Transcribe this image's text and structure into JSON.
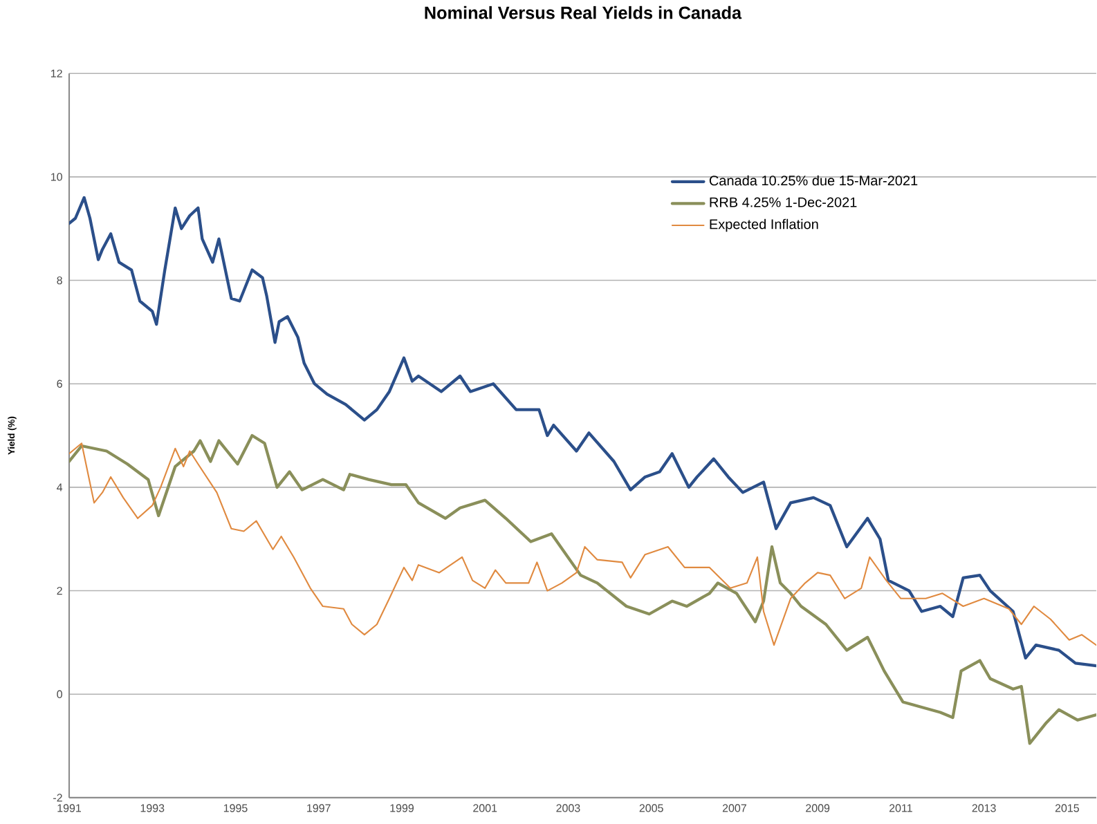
{
  "chart_data": {
    "type": "line",
    "title": "Nominal Versus Real Yields in Canada",
    "ylabel": "Yield (%)",
    "xlim": [
      1991,
      2015.7
    ],
    "xticks": [
      1991,
      1993,
      1995,
      1997,
      1999,
      2001,
      2003,
      2005,
      2007,
      2009,
      2011,
      2013,
      2015
    ],
    "ylim": [
      -2,
      12
    ],
    "yticks": [
      -2,
      0,
      2,
      4,
      6,
      8,
      10,
      12
    ],
    "grid": "y",
    "legend": "top right",
    "marker": "none",
    "line_style": "solid",
    "series": [
      {
        "name": "Canada 10.25% due 15-Mar-2021",
        "color": "#2b4f8a",
        "x": [
          1991.0,
          1991.15,
          1991.36,
          1991.5,
          1991.7,
          1991.8,
          1992.0,
          1992.2,
          1992.5,
          1992.7,
          1993.0,
          1993.1,
          1993.3,
          1993.55,
          1993.7,
          1993.9,
          1994.1,
          1994.2,
          1994.45,
          1994.6,
          1994.9,
          1995.1,
          1995.4,
          1995.65,
          1995.75,
          1995.95,
          1996.05,
          1996.25,
          1996.5,
          1996.65,
          1996.9,
          1997.2,
          1997.65,
          1998.1,
          1998.4,
          1998.7,
          1999.05,
          1999.25,
          1999.4,
          1999.95,
          2000.4,
          2000.65,
          2001.2,
          2001.75,
          2002.3,
          2002.5,
          2002.65,
          2003.2,
          2003.5,
          2004.1,
          2004.5,
          2004.85,
          2005.2,
          2005.5,
          2005.9,
          2006.1,
          2006.5,
          2006.85,
          2007.2,
          2007.7,
          2008.0,
          2008.35,
          2008.9,
          2009.3,
          2009.7,
          2010.2,
          2010.5,
          2010.7,
          2011.2,
          2011.5,
          2011.95,
          2012.25,
          2012.5,
          2012.9,
          2013.15,
          2013.7,
          2014.0,
          2014.25,
          2014.8,
          2015.2,
          2015.7
        ],
        "values": [
          9.1,
          9.2,
          9.6,
          9.2,
          8.4,
          8.6,
          8.9,
          8.35,
          8.2,
          7.6,
          7.4,
          7.15,
          8.2,
          9.4,
          9.0,
          9.25,
          9.4,
          8.8,
          8.35,
          8.8,
          7.65,
          7.6,
          8.2,
          8.05,
          7.7,
          6.8,
          7.2,
          7.3,
          6.9,
          6.4,
          6.0,
          5.8,
          5.6,
          5.3,
          5.5,
          5.85,
          6.5,
          6.05,
          6.15,
          5.85,
          6.15,
          5.85,
          6.0,
          5.5,
          5.5,
          5.0,
          5.2,
          4.7,
          5.05,
          4.5,
          3.95,
          4.2,
          4.3,
          4.65,
          4.0,
          4.2,
          4.55,
          4.2,
          3.9,
          4.1,
          3.2,
          3.7,
          3.8,
          3.65,
          2.85,
          3.4,
          3.0,
          2.2,
          2.0,
          1.6,
          1.7,
          1.5,
          2.25,
          2.3,
          2.0,
          1.6,
          0.7,
          0.95,
          0.85,
          0.6,
          0.55
        ]
      },
      {
        "name": "RRB 4.25% 1-Dec-2021",
        "color": "#8a8f5a",
        "x": [
          1991.0,
          1991.3,
          1991.9,
          1992.4,
          1992.9,
          1993.15,
          1993.55,
          1994.0,
          1994.15,
          1994.4,
          1994.6,
          1995.05,
          1995.4,
          1995.7,
          1996.0,
          1996.3,
          1996.6,
          1997.1,
          1997.6,
          1997.75,
          1998.2,
          1998.75,
          1999.1,
          1999.4,
          2000.05,
          2000.4,
          2001.0,
          2001.5,
          2002.1,
          2002.6,
          2003.3,
          2003.7,
          2004.4,
          2004.95,
          2005.5,
          2005.85,
          2006.4,
          2006.6,
          2007.05,
          2007.5,
          2007.7,
          2007.9,
          2008.1,
          2008.35,
          2008.6,
          2009.2,
          2009.7,
          2010.2,
          2010.6,
          2011.05,
          2011.5,
          2011.95,
          2012.25,
          2012.45,
          2012.9,
          2013.15,
          2013.7,
          2013.9,
          2014.1,
          2014.5,
          2014.8,
          2015.25,
          2015.7
        ],
        "values": [
          4.5,
          4.8,
          4.7,
          4.45,
          4.15,
          3.45,
          4.4,
          4.7,
          4.9,
          4.5,
          4.9,
          4.45,
          5.0,
          4.85,
          4.0,
          4.3,
          3.95,
          4.15,
          3.95,
          4.25,
          4.15,
          4.05,
          4.05,
          3.7,
          3.4,
          3.6,
          3.75,
          3.4,
          2.95,
          3.1,
          2.3,
          2.15,
          1.7,
          1.55,
          1.8,
          1.7,
          1.95,
          2.15,
          1.95,
          1.4,
          1.8,
          2.85,
          2.15,
          1.95,
          1.7,
          1.35,
          0.85,
          1.1,
          0.45,
          -0.15,
          -0.25,
          -0.35,
          -0.45,
          0.45,
          0.65,
          0.3,
          0.1,
          0.15,
          -0.95,
          -0.55,
          -0.3,
          -0.5,
          -0.4
        ]
      },
      {
        "name": "Expected Inflation",
        "color": "#e08a40",
        "x": [
          1991.0,
          1991.3,
          1991.6,
          1991.8,
          1992.0,
          1992.3,
          1992.65,
          1993.0,
          1993.2,
          1993.55,
          1993.75,
          1993.9,
          1994.1,
          1994.55,
          1994.9,
          1995.2,
          1995.5,
          1995.9,
          1996.1,
          1996.4,
          1996.8,
          1997.1,
          1997.6,
          1997.8,
          1998.1,
          1998.4,
          1998.7,
          1999.05,
          1999.25,
          1999.4,
          1999.9,
          2000.45,
          2000.7,
          2001.0,
          2001.25,
          2001.5,
          2002.05,
          2002.25,
          2002.5,
          2002.85,
          2003.2,
          2003.4,
          2003.7,
          2004.3,
          2004.5,
          2004.85,
          2005.4,
          2005.8,
          2006.4,
          2006.9,
          2007.3,
          2007.55,
          2007.7,
          2007.95,
          2008.35,
          2008.7,
          2009.0,
          2009.3,
          2009.65,
          2010.05,
          2010.25,
          2010.65,
          2011.0,
          2011.6,
          2012.0,
          2012.5,
          2013.0,
          2013.6,
          2013.9,
          2014.2,
          2014.6,
          2015.05,
          2015.35,
          2015.7
        ],
        "values": [
          4.65,
          4.85,
          3.7,
          3.9,
          4.2,
          3.8,
          3.4,
          3.65,
          4.0,
          4.75,
          4.4,
          4.7,
          4.45,
          3.9,
          3.2,
          3.15,
          3.35,
          2.8,
          3.05,
          2.65,
          2.05,
          1.7,
          1.65,
          1.35,
          1.15,
          1.35,
          1.85,
          2.45,
          2.2,
          2.5,
          2.35,
          2.65,
          2.2,
          2.05,
          2.4,
          2.15,
          2.15,
          2.55,
          2.0,
          2.15,
          2.35,
          2.85,
          2.6,
          2.55,
          2.25,
          2.7,
          2.85,
          2.45,
          2.45,
          2.05,
          2.15,
          2.65,
          1.6,
          0.95,
          1.85,
          2.15,
          2.35,
          2.3,
          1.85,
          2.05,
          2.65,
          2.2,
          1.85,
          1.85,
          1.95,
          1.7,
          1.85,
          1.65,
          1.35,
          1.7,
          1.45,
          1.05,
          1.15,
          0.95
        ]
      }
    ]
  }
}
